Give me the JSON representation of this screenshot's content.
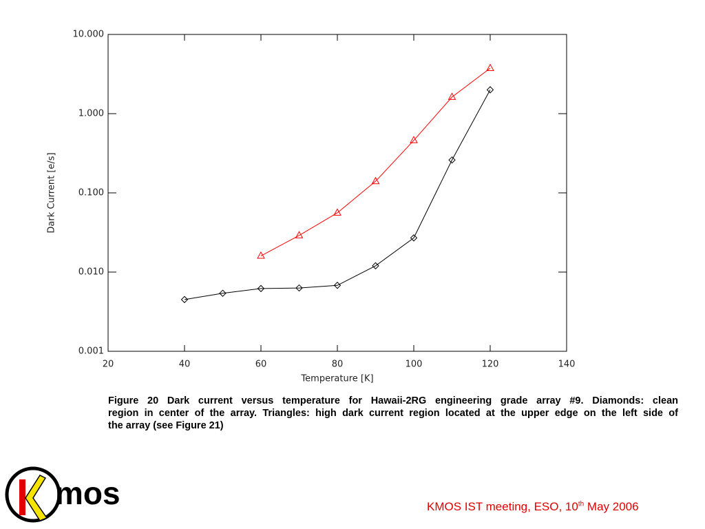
{
  "chart_data": {
    "type": "line",
    "xlabel": "Temperature [K]",
    "ylabel": "Dark Current [e/s]",
    "x": [
      40,
      50,
      60,
      70,
      80,
      90,
      100,
      110,
      120
    ],
    "series": [
      {
        "color": "#000000",
        "marker": "diamond",
        "values": [
          0.0045,
          0.0054,
          0.0062,
          0.0063,
          0.0068,
          0.012,
          0.027,
          0.26,
          2.0
        ]
      },
      {
        "color": "#ff0000",
        "marker": "triangle",
        "values": [
          null,
          null,
          0.016,
          0.029,
          0.056,
          0.14,
          0.46,
          1.62,
          3.75
        ]
      }
    ],
    "xlim": [
      20,
      140
    ],
    "xticks": [
      20,
      40,
      60,
      80,
      100,
      120,
      140
    ],
    "ylim": [
      0.001,
      10
    ],
    "ylog": true,
    "yticks": [
      {
        "value": 0.001,
        "label": "0.001"
      },
      {
        "value": 0.01,
        "label": "0.010"
      },
      {
        "value": 0.1,
        "label": "0.100"
      },
      {
        "value": 1,
        "label": "1.000"
      },
      {
        "value": 10,
        "label": "10.000"
      }
    ]
  },
  "caption": {
    "lines": [
      "Figure 20 Dark current versus temperature for Hawaii-2RG engineering grade array #9. Diamonds: clean",
      "region in center of the array. Triangles: high dark current region located at the upper edge on the left side of",
      "the array (see Figure 21)"
    ]
  },
  "logo": {
    "text": "mos"
  },
  "footer": {
    "text_before": "KMOS IST meeting, ESO, 10",
    "superscript": "th",
    "text_after": " May 2006"
  }
}
